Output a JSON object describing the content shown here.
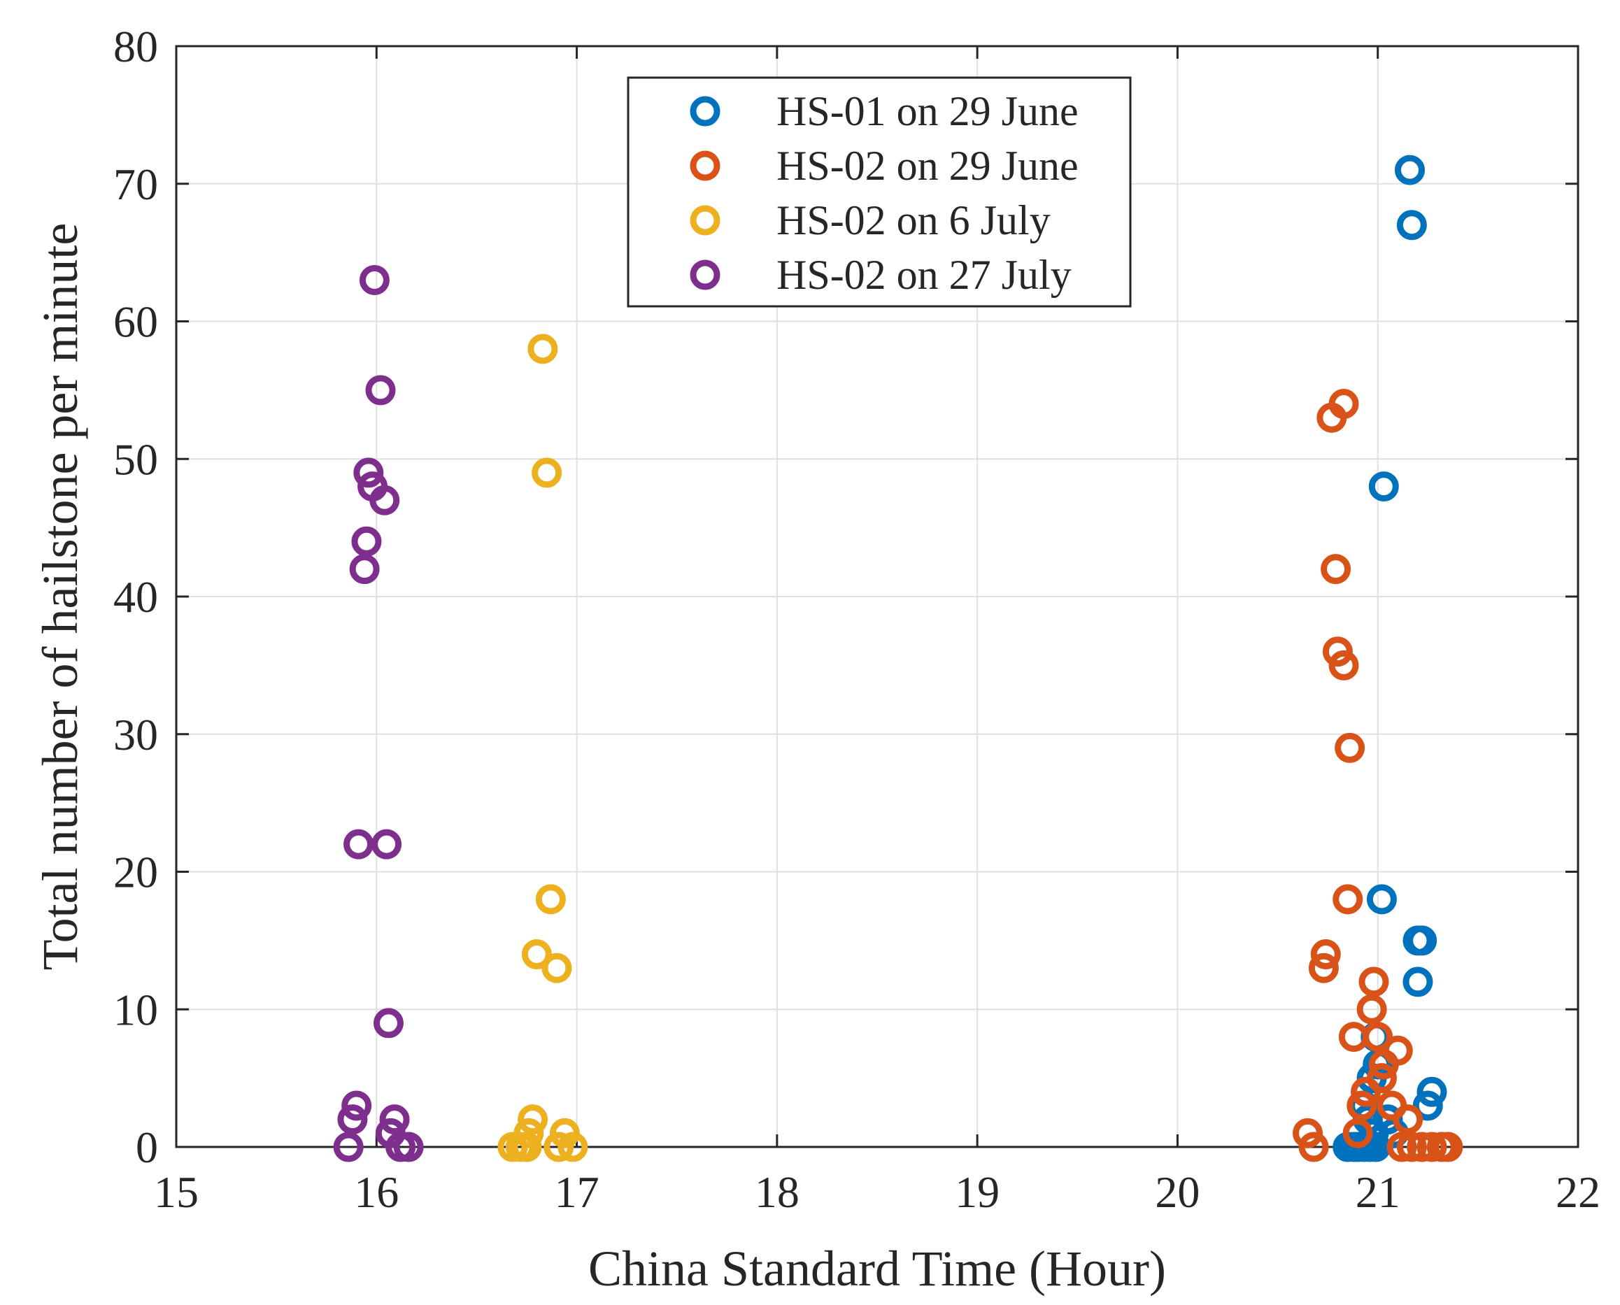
{
  "chart_data": {
    "type": "scatter",
    "title": "",
    "xlabel": "China Standard Time (Hour)",
    "ylabel": "Total number of hailstone per minute",
    "xlim": [
      15,
      22
    ],
    "ylim": [
      0,
      80
    ],
    "xticks": [
      15,
      16,
      17,
      18,
      19,
      20,
      21,
      22
    ],
    "yticks": [
      0,
      10,
      20,
      30,
      40,
      50,
      60,
      70,
      80
    ],
    "xtick_labels": [
      "15",
      "16",
      "17",
      "18",
      "19",
      "20",
      "21",
      "22"
    ],
    "ytick_labels": [
      "0",
      "10",
      "20",
      "30",
      "40",
      "50",
      "60",
      "70",
      "80"
    ],
    "grid": true,
    "legend_position": "top-center",
    "series": [
      {
        "name": "HS-01 on 29 June",
        "color": "#0072BD",
        "points": [
          [
            21.16,
            71
          ],
          [
            21.17,
            67
          ],
          [
            21.03,
            48
          ],
          [
            21.02,
            18
          ],
          [
            21.2,
            15
          ],
          [
            21.22,
            15
          ],
          [
            21.2,
            12
          ],
          [
            20.99,
            8
          ],
          [
            21.0,
            6
          ],
          [
            20.97,
            5
          ],
          [
            21.02,
            6
          ],
          [
            21.27,
            4
          ],
          [
            21.25,
            3
          ],
          [
            20.93,
            3
          ],
          [
            20.95,
            2
          ],
          [
            20.98,
            1
          ],
          [
            21.05,
            2
          ],
          [
            21.08,
            1
          ],
          [
            20.85,
            0
          ],
          [
            20.88,
            0
          ],
          [
            20.9,
            0
          ],
          [
            20.93,
            0
          ],
          [
            20.96,
            0
          ],
          [
            20.99,
            0
          ]
        ]
      },
      {
        "name": "HS-02 on 29 June",
        "color": "#D95319",
        "points": [
          [
            20.83,
            54
          ],
          [
            20.77,
            53
          ],
          [
            20.79,
            42
          ],
          [
            20.8,
            36
          ],
          [
            20.83,
            35
          ],
          [
            20.86,
            29
          ],
          [
            20.85,
            18
          ],
          [
            20.74,
            14
          ],
          [
            20.73,
            13
          ],
          [
            20.98,
            12
          ],
          [
            20.97,
            10
          ],
          [
            20.88,
            8
          ],
          [
            21.0,
            8
          ],
          [
            21.1,
            7
          ],
          [
            21.03,
            6
          ],
          [
            21.02,
            5
          ],
          [
            20.94,
            4
          ],
          [
            20.92,
            3
          ],
          [
            21.07,
            3
          ],
          [
            21.15,
            2
          ],
          [
            20.65,
            1
          ],
          [
            20.9,
            1
          ],
          [
            20.68,
            0
          ],
          [
            21.12,
            0
          ],
          [
            21.17,
            0
          ],
          [
            21.22,
            0
          ],
          [
            21.27,
            0
          ],
          [
            21.32,
            0
          ],
          [
            21.35,
            0
          ]
        ]
      },
      {
        "name": "HS-02 on 6 July",
        "color": "#EDB120",
        "points": [
          [
            16.83,
            58
          ],
          [
            16.85,
            49
          ],
          [
            16.87,
            18
          ],
          [
            16.8,
            14
          ],
          [
            16.9,
            13
          ],
          [
            16.78,
            2
          ],
          [
            16.76,
            1
          ],
          [
            16.94,
            1
          ],
          [
            16.98,
            0
          ],
          [
            16.91,
            0
          ],
          [
            16.68,
            0
          ],
          [
            16.72,
            0
          ],
          [
            16.75,
            0
          ]
        ]
      },
      {
        "name": "HS-02 on 27 July",
        "color": "#7E2F8E",
        "points": [
          [
            15.99,
            63
          ],
          [
            16.02,
            55
          ],
          [
            15.96,
            49
          ],
          [
            15.98,
            48
          ],
          [
            16.04,
            47
          ],
          [
            15.95,
            44
          ],
          [
            15.94,
            42
          ],
          [
            15.91,
            22
          ],
          [
            16.05,
            22
          ],
          [
            16.06,
            9
          ],
          [
            15.9,
            3
          ],
          [
            15.88,
            2
          ],
          [
            16.09,
            2
          ],
          [
            16.07,
            1
          ],
          [
            15.86,
            0
          ],
          [
            16.12,
            0
          ],
          [
            16.16,
            0
          ]
        ]
      }
    ]
  }
}
